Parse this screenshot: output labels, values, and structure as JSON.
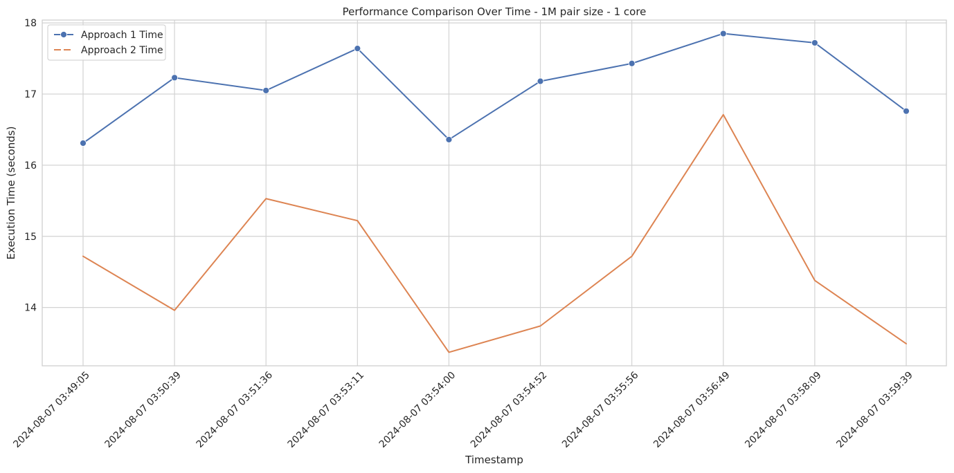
{
  "chart_data": {
    "type": "line",
    "title": "Performance Comparison Over Time - 1M pair size - 1 core",
    "xlabel": "Timestamp",
    "ylabel": "Execution Time (seconds)",
    "categories": [
      "2024-08-07 03:49:05",
      "2024-08-07 03:50:39",
      "2024-08-07 03:51:36",
      "2024-08-07 03:53:11",
      "2024-08-07 03:54:00",
      "2024-08-07 03:54:52",
      "2024-08-07 03:55:56",
      "2024-08-07 03:56:49",
      "2024-08-07 03:58:09",
      "2024-08-07 03:59:39"
    ],
    "yticks": [
      14,
      15,
      16,
      17,
      18
    ],
    "ylim": [
      13.18,
      18.04
    ],
    "grid": true,
    "legend_position": "top-left",
    "series": [
      {
        "name": "Approach 1 Time",
        "color": "#4c72b0",
        "marker": "circle",
        "linestyle": "solid",
        "values": [
          16.31,
          17.23,
          17.05,
          17.64,
          16.36,
          17.18,
          17.43,
          17.85,
          17.72,
          16.76
        ]
      },
      {
        "name": "Approach 2 Time",
        "color": "#dd8452",
        "marker": "none",
        "linestyle": "dashed",
        "values": [
          14.72,
          13.96,
          15.53,
          15.22,
          13.37,
          13.74,
          14.72,
          16.71,
          14.38,
          13.49
        ]
      }
    ]
  }
}
